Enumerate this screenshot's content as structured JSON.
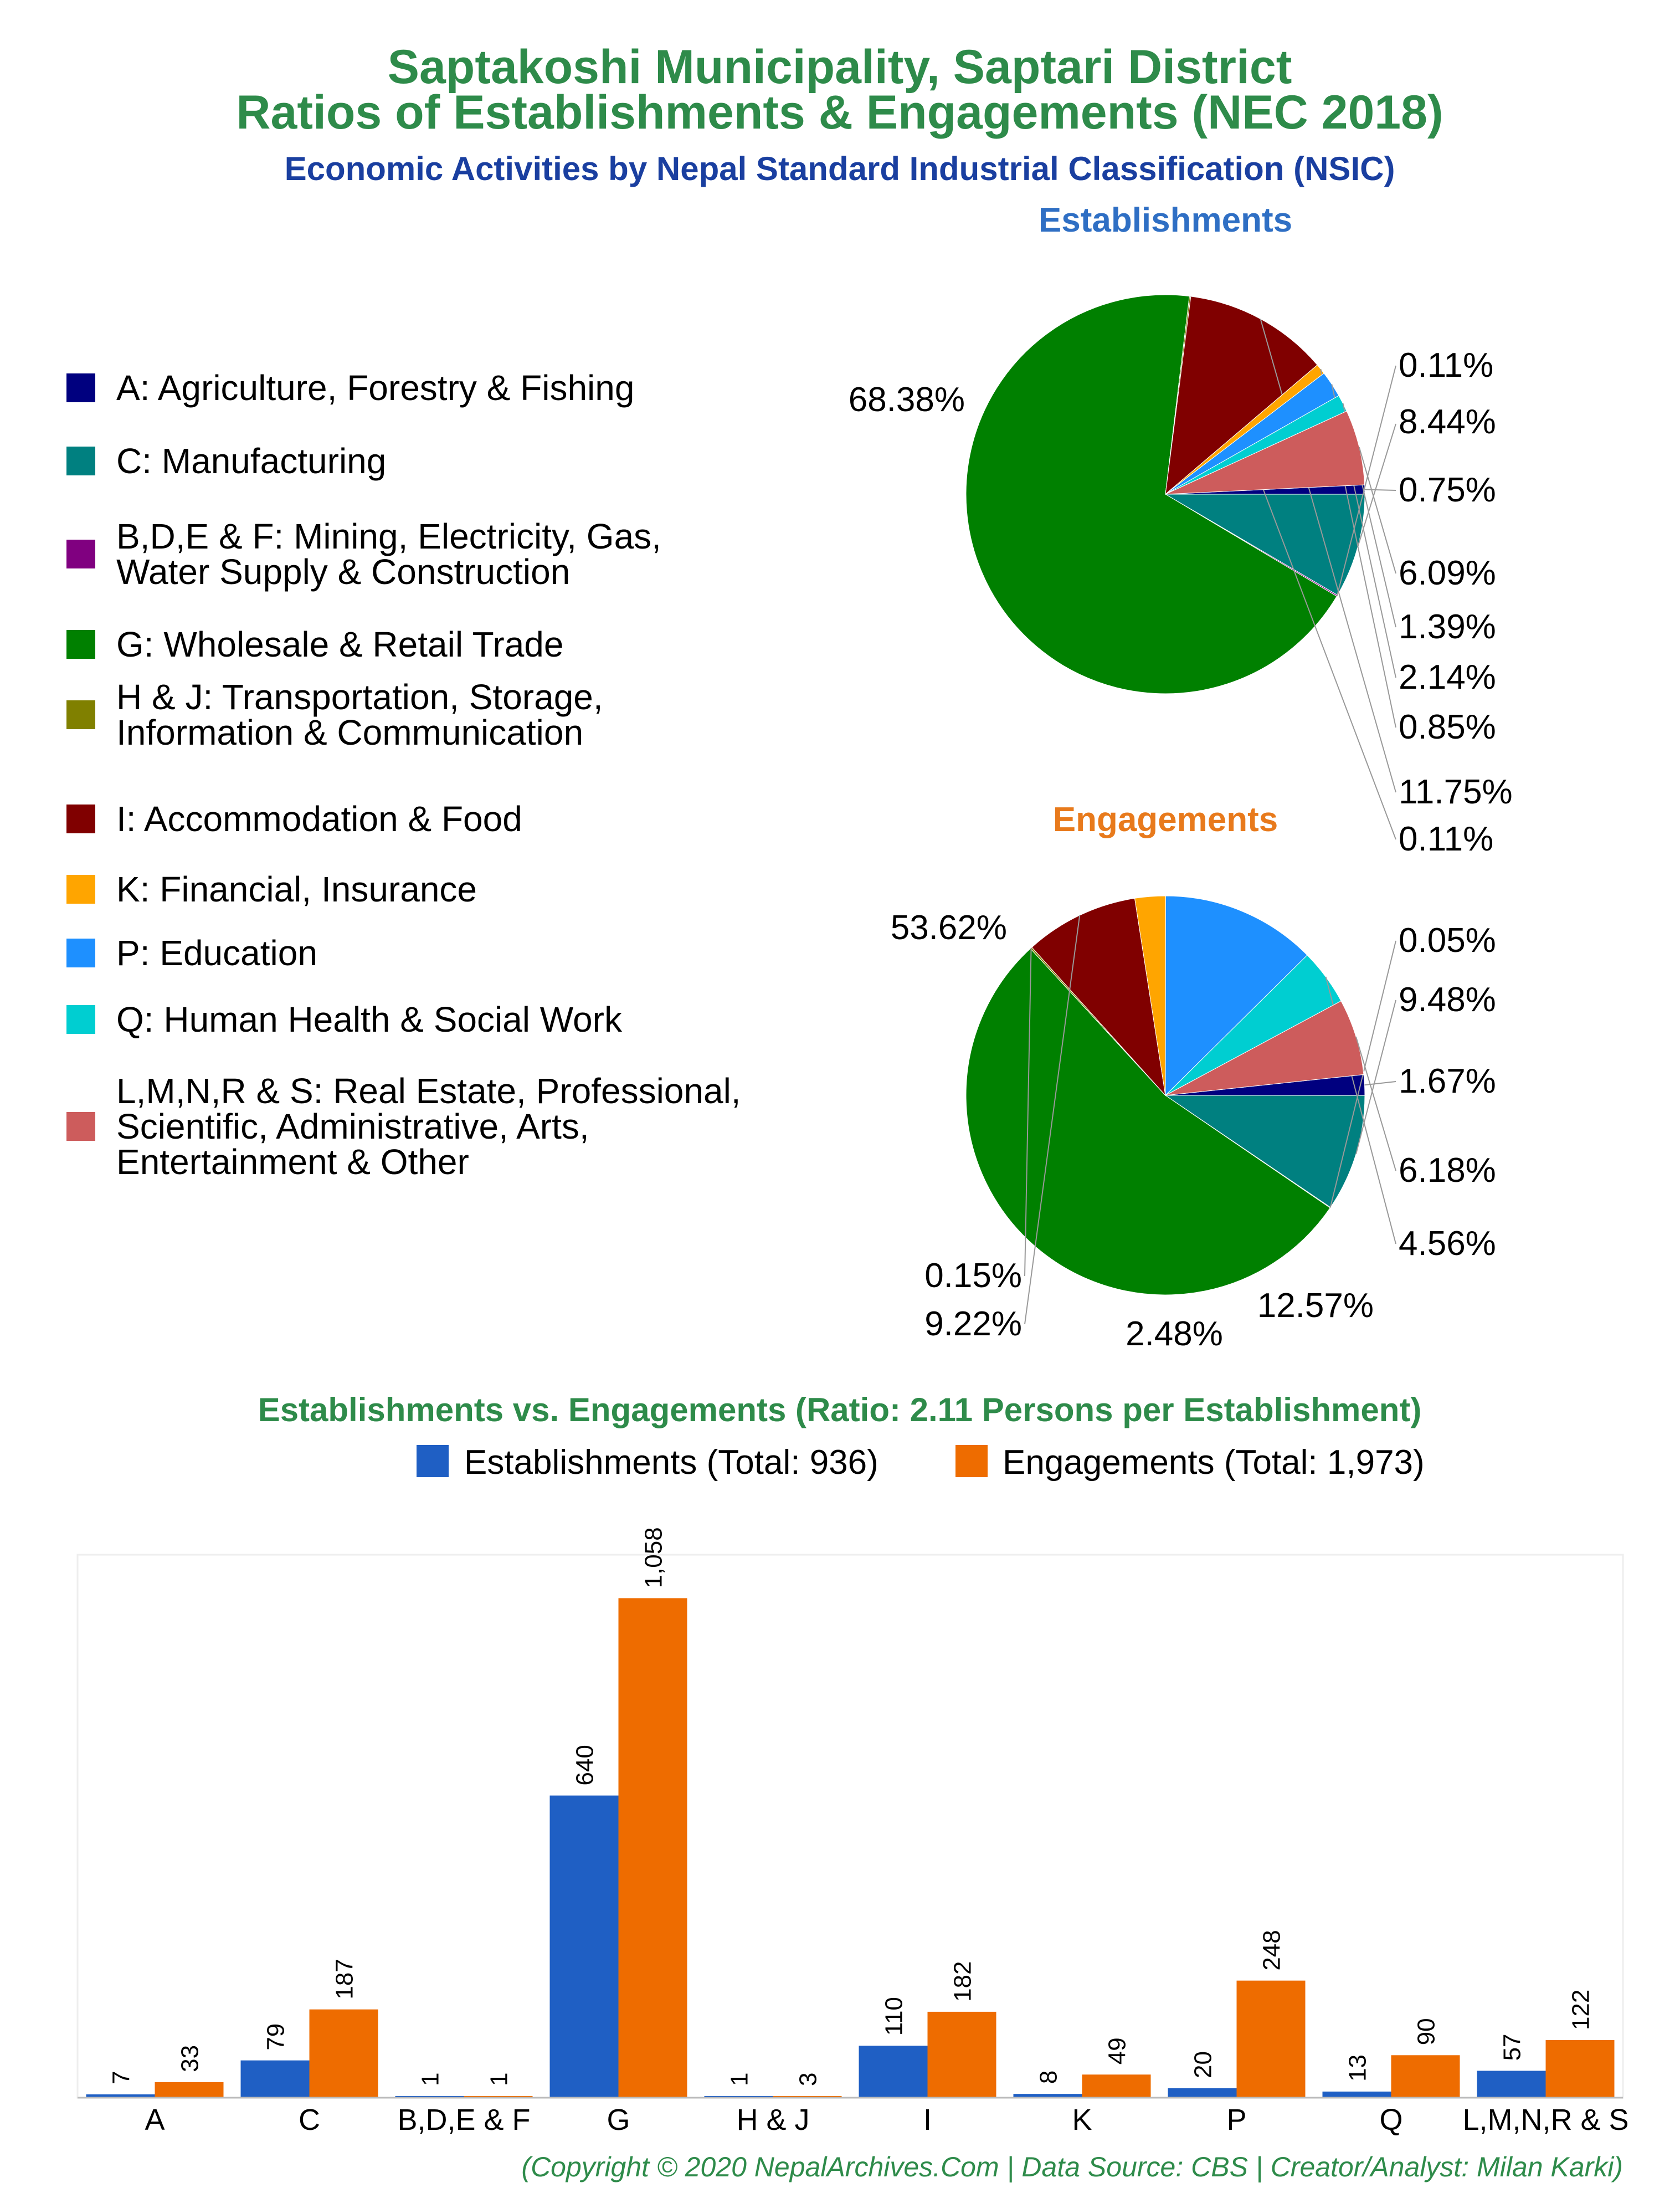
{
  "title_line1": "Saptakoshi Municipality, Saptari District",
  "title_line2": "Ratios of Establishments & Engagements (NEC 2018)",
  "subtitle": "Economic Activities by Nepal Standard Industrial Classification (NSIC)",
  "legend": [
    {
      "key": "A",
      "lines": [
        "A: Agriculture, Forestry & Fishing"
      ],
      "color": "#00007f"
    },
    {
      "key": "C",
      "lines": [
        "C: Manufacturing"
      ],
      "color": "#008080"
    },
    {
      "key": "BDEF",
      "lines": [
        "B,D,E & F: Mining, Electricity, Gas,",
        "Water Supply & Construction"
      ],
      "color": "#800080"
    },
    {
      "key": "G",
      "lines": [
        "G: Wholesale & Retail Trade"
      ],
      "color": "#008000"
    },
    {
      "key": "HJ",
      "lines": [
        "H & J: Transportation, Storage,",
        "Information & Communication"
      ],
      "color": "#808000"
    },
    {
      "key": "I",
      "lines": [
        "I: Accommodation & Food"
      ],
      "color": "#800000"
    },
    {
      "key": "K",
      "lines": [
        "K: Financial, Insurance"
      ],
      "color": "#ffa500"
    },
    {
      "key": "P",
      "lines": [
        "P: Education"
      ],
      "color": "#1e90ff"
    },
    {
      "key": "Q",
      "lines": [
        "Q: Human Health & Social Work"
      ],
      "color": "#00ced1"
    },
    {
      "key": "LMNRS",
      "lines": [
        "L,M,N,R & S: Real Estate, Professional,",
        "Scientific, Administrative, Arts,",
        "Entertainment & Other"
      ],
      "color": "#cd5c5c"
    }
  ],
  "bar_title": "Establishments vs. Engagements (Ratio: 2.11 Persons per Establishment)",
  "bar_legend": {
    "establishments": "Establishments (Total: 936)",
    "engagements": "Engagements (Total: 1,973)",
    "est_color": "#1f5fc4",
    "eng_color": "#ee6c00"
  },
  "footer": "(Copyright © 2020 NepalArchives.Com | Data Source: CBS | Creator/Analyst: Milan Karki)",
  "chart_data": [
    {
      "type": "pie",
      "title": "Establishments",
      "categories": [
        "A",
        "C",
        "B,D,E & F",
        "G",
        "H & J",
        "I",
        "K",
        "P",
        "Q",
        "L,M,N,R & S"
      ],
      "values": [
        0.75,
        8.44,
        0.11,
        68.38,
        0.11,
        11.75,
        0.85,
        2.14,
        1.39,
        6.09
      ],
      "labels": [
        "0.75%",
        "8.44%",
        "0.11%",
        "68.38%",
        "0.11%",
        "11.75%",
        "0.85%",
        "2.14%",
        "1.39%",
        "6.09%"
      ]
    },
    {
      "type": "pie",
      "title": "Engagements",
      "categories": [
        "A",
        "C",
        "B,D,E & F",
        "G",
        "H & J",
        "I",
        "K",
        "P",
        "Q",
        "L,M,N,R & S"
      ],
      "values": [
        1.67,
        9.48,
        0.05,
        53.62,
        0.15,
        9.22,
        2.48,
        12.57,
        4.56,
        6.18
      ],
      "labels": [
        "1.67%",
        "9.48%",
        "0.05%",
        "53.62%",
        "0.15%",
        "9.22%",
        "2.48%",
        "12.57%",
        "4.56%",
        "6.18%"
      ]
    },
    {
      "type": "bar",
      "categories": [
        "A",
        "C",
        "B,D,E & F",
        "G",
        "H & J",
        "I",
        "K",
        "P",
        "Q",
        "L,M,N,R & S"
      ],
      "series": [
        {
          "name": "Establishments (Total: 936)",
          "values": [
            7,
            79,
            1,
            640,
            1,
            110,
            8,
            20,
            13,
            57
          ],
          "labels": [
            "7",
            "79",
            "1",
            "640",
            "1",
            "110",
            "8",
            "20",
            "13",
            "57"
          ]
        },
        {
          "name": "Engagements (Total: 1,973)",
          "values": [
            33,
            187,
            1,
            1058,
            3,
            182,
            49,
            248,
            90,
            122
          ],
          "labels": [
            "33",
            "187",
            "1",
            "1,058",
            "3",
            "182",
            "49",
            "248",
            "90",
            "122"
          ]
        }
      ],
      "ylim": [
        0,
        1150
      ],
      "grid": false
    }
  ]
}
